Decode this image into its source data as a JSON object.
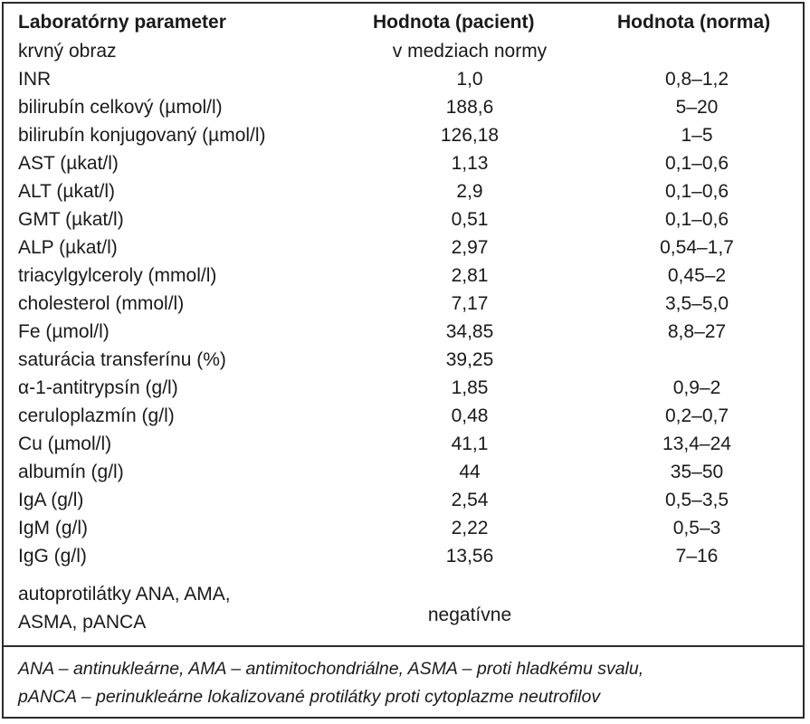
{
  "table": {
    "headers": [
      "Laboratórny parameter",
      "Hodnota (pacient)",
      "Hodnota (norma)"
    ],
    "rows": [
      [
        "krvný obraz",
        "v medziach normy",
        ""
      ],
      [
        "INR",
        "1,0",
        "0,8–1,2"
      ],
      [
        "bilirubín celkový (µmol/l)",
        "188,6",
        "5–20"
      ],
      [
        "bilirubín konjugovaný (µmol/l)",
        "126,18",
        "1–5"
      ],
      [
        "AST (µkat/l)",
        "1,13",
        "0,1–0,6"
      ],
      [
        "ALT (µkat/l)",
        "2,9",
        "0,1–0,6"
      ],
      [
        "GMT (µkat/l)",
        "0,51",
        "0,1–0,6"
      ],
      [
        "ALP (µkat/l)",
        "2,97",
        "0,54–1,7"
      ],
      [
        "triacylgylceroly (mmol/l)",
        "2,81",
        "0,45–2"
      ],
      [
        "cholesterol (mmol/l)",
        "7,17",
        "3,5–5,0"
      ],
      [
        "Fe (µmol/l)",
        "34,85",
        "8,8–27"
      ],
      [
        "saturácia transferínu (%)",
        "39,25",
        ""
      ],
      [
        "α-1-antitrypsín (g/l)",
        "1,85",
        "0,9–2"
      ],
      [
        "ceruloplazmín (g/l)",
        "0,48",
        "0,2–0,7"
      ],
      [
        "Cu (µmol/l)",
        "41,1",
        "13,4–24"
      ],
      [
        "albumín (g/l)",
        "44",
        "35–50"
      ],
      [
        "IgA (g/l)",
        "2,54",
        "0,5–3,5"
      ],
      [
        "IgM (g/l)",
        "2,22",
        "0,5–3"
      ],
      [
        "IgG (g/l)",
        "13,56",
        "7–16"
      ]
    ],
    "last_row": {
      "param_line1": "autoprotilátky ANA, AMA,",
      "param_line2": "ASMA, pANCA",
      "value": "negatívne"
    }
  },
  "footnote": {
    "line1": "ANA – antinukleárne, AMA – antimitochondriálne, ASMA – proti hladkému svalu,",
    "line2": "pANCA – perinukleárne lokalizované protilátky proti cytoplazme neutrofilov"
  }
}
